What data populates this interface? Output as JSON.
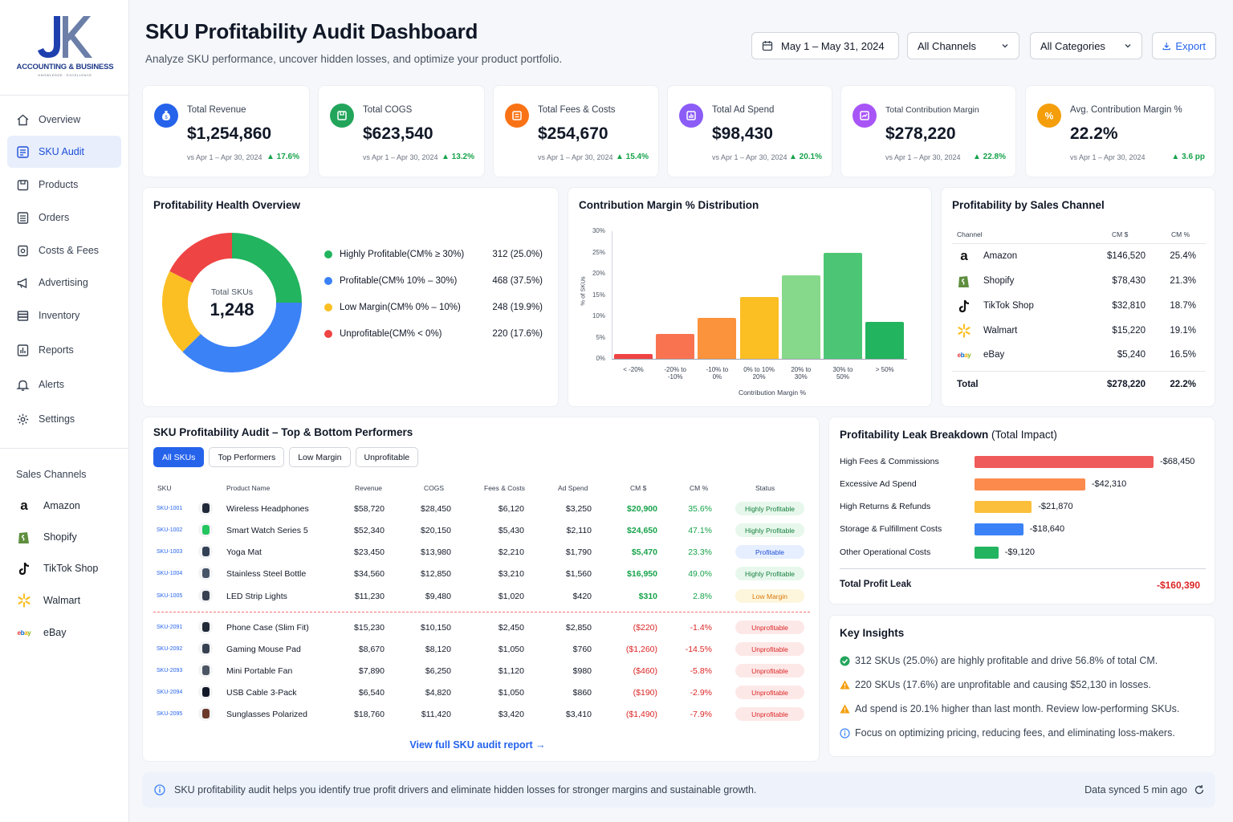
{
  "brand": {
    "name": "ACCOUNTING & BUSINESS",
    "tagline": "KNOWLEDGE · EXCELLENCE",
    "mark": "JK"
  },
  "header": {
    "title": "SKU Profitability Audit Dashboard",
    "subtitle": "Analyze SKU performance, uncover hidden losses, and optimize your product portfolio.",
    "date_range": "May 1 – May 31, 2024",
    "channel_select": "All Channels",
    "category_select": "All Categories",
    "export_label": "Export"
  },
  "nav": {
    "items": [
      {
        "label": "Overview",
        "icon": "home-icon"
      },
      {
        "label": "SKU Audit",
        "icon": "sku-audit-icon"
      },
      {
        "label": "Products",
        "icon": "box-icon"
      },
      {
        "label": "Orders",
        "icon": "orders-icon"
      },
      {
        "label": "Costs & Fees",
        "icon": "receipt-icon"
      },
      {
        "label": "Advertising",
        "icon": "megaphone-icon"
      },
      {
        "label": "Inventory",
        "icon": "inventory-icon"
      },
      {
        "label": "Reports",
        "icon": "reports-icon"
      },
      {
        "label": "Alerts",
        "icon": "bell-icon"
      },
      {
        "label": "Settings",
        "icon": "gear-icon"
      }
    ],
    "channels_heading": "Sales Channels",
    "channels": [
      {
        "label": "Amazon",
        "icon": "amazon-icon"
      },
      {
        "label": "Shopify",
        "icon": "shopify-icon"
      },
      {
        "label": "TikTok Shop",
        "icon": "tiktok-icon"
      },
      {
        "label": "Walmart",
        "icon": "walmart-icon"
      },
      {
        "label": "eBay",
        "icon": "ebay-icon"
      }
    ]
  },
  "kpis": [
    {
      "label": "Total Revenue",
      "value": "$1,254,860",
      "compare": "vs Apr 1 – Apr 30, 2024",
      "change": "▲ 17.6%",
      "color": "#2563eb",
      "icon": "money-bag-icon"
    },
    {
      "label": "Total COGS",
      "value": "$623,540",
      "compare": "vs Apr 1 – Apr 30, 2024",
      "change": "▲ 13.2%",
      "color": "#22a55b",
      "icon": "package-icon"
    },
    {
      "label": "Total Fees & Costs",
      "value": "$254,670",
      "compare": "vs Apr 1 – Apr 30, 2024",
      "change": "▲ 15.4%",
      "color": "#f97316",
      "icon": "fees-icon"
    },
    {
      "label": "Total Ad Spend",
      "value": "$98,430",
      "compare": "vs Apr 1 – Apr 30, 2024",
      "change": "▲ 20.1%",
      "color": "#8b5cf6",
      "icon": "ad-icon"
    },
    {
      "label": "Total Contribution Margin",
      "value": "$278,220",
      "compare": "vs Apr 1 – Apr 30, 2024",
      "change": "▲ 22.8%",
      "color": "#a855f7",
      "icon": "margin-icon"
    },
    {
      "label": "Avg. Contribution Margin %",
      "value": "22.2%",
      "compare": "vs Apr 1 – Apr 30, 2024",
      "change": "▲ 3.6 pp",
      "color": "#f59e0b",
      "icon": "percent-icon"
    }
  ],
  "health": {
    "title": "Profitability Health Overview",
    "center_label": "Total SKUs",
    "center_value": "1,248",
    "segments": [
      {
        "name": "Highly Profitable",
        "range": " (CM% ≥ 30%)",
        "value": "312 (25.0%)",
        "share": 25.0,
        "color": "#22b45e"
      },
      {
        "name": "Profitable",
        "range": " (CM% 10% – 30%)",
        "value": "468 (37.5%)",
        "share": 37.5,
        "color": "#3b82f6"
      },
      {
        "name": "Low Margin",
        "range": " (CM% 0% – 10%)",
        "value": "248 (19.9%)",
        "share": 19.9,
        "color": "#fbbf24"
      },
      {
        "name": "Unprofitable",
        "range": " (CM% < 0%)",
        "value": "220 (17.6%)",
        "share": 17.6,
        "color": "#ef4444"
      }
    ]
  },
  "chart_data": {
    "type": "bar",
    "title": "Contribution Margin % Distribution",
    "xlabel": "Contribution Margin %",
    "ylabel": "% of SKUs",
    "categories": [
      "< -20%",
      "-20% to -10%",
      "-10% to 0%",
      "0% to 10%",
      "20% to 30%",
      "30% to 50%",
      "> 50%"
    ],
    "category_lines": [
      [
        "< -20%"
      ],
      [
        "-20% to",
        "-10%"
      ],
      [
        "-10% to",
        "0%"
      ],
      [
        "0% to 10%",
        "20%"
      ],
      [
        "20% to",
        "30%"
      ],
      [
        "30% to",
        "50%"
      ],
      [
        "> 50%"
      ]
    ],
    "values": [
      1.2,
      5.8,
      9.6,
      14.5,
      19.7,
      25.0,
      8.6
    ],
    "colors": [
      "#ef4444",
      "#f97350",
      "#fb923c",
      "#fbbf24",
      "#86d98a",
      "#4cc674",
      "#22b45e"
    ],
    "yticks": [
      "30%",
      "25%",
      "20%",
      "15%",
      "10%",
      "5%",
      "0%"
    ],
    "ylim": [
      0,
      30
    ]
  },
  "channels_table": {
    "title": "Profitability by Sales Channel",
    "headers": [
      "Channel",
      "CM $",
      "CM %"
    ],
    "rows": [
      {
        "name": "Amazon",
        "cm": "$146,520",
        "pct": "25.4%"
      },
      {
        "name": "Shopify",
        "cm": "$78,430",
        "pct": "21.3%"
      },
      {
        "name": "TikTok Shop",
        "cm": "$32,810",
        "pct": "18.7%"
      },
      {
        "name": "Walmart",
        "cm": "$15,220",
        "pct": "19.1%"
      },
      {
        "name": "eBay",
        "cm": "$5,240",
        "pct": "16.5%"
      }
    ],
    "total": {
      "name": "Total",
      "cm": "$278,220",
      "pct": "22.2%"
    }
  },
  "sku_table": {
    "title": "SKU Profitability Audit – Top & Bottom Performers",
    "tabs": [
      "All SKUs",
      "Top Performers",
      "Low Margin",
      "Unprofitable"
    ],
    "headers": [
      "SKU",
      "Product Name",
      "Revenue",
      "COGS",
      "Fees & Costs",
      "Ad Spend",
      "CM $",
      "CM %",
      "Status"
    ],
    "rows": [
      {
        "sku": "SKU-1001",
        "name": "Wireless Headphones",
        "rev": "$58,720",
        "cogs": "$28,450",
        "fees": "$6,120",
        "ad": "$3,250",
        "cm": "$20,900",
        "pct": "35.6%",
        "status": "Highly Profitable",
        "tone": "green"
      },
      {
        "sku": "SKU-1002",
        "name": "Smart Watch Series 5",
        "rev": "$52,340",
        "cogs": "$20,150",
        "fees": "$5,430",
        "ad": "$2,110",
        "cm": "$24,650",
        "pct": "47.1%",
        "status": "Highly Profitable",
        "tone": "green"
      },
      {
        "sku": "SKU-1003",
        "name": "Yoga Mat",
        "rev": "$23,450",
        "cogs": "$13,980",
        "fees": "$2,210",
        "ad": "$1,790",
        "cm": "$5,470",
        "pct": "23.3%",
        "status": "Profitable",
        "tone": "blue"
      },
      {
        "sku": "SKU-1004",
        "name": "Stainless Steel Bottle",
        "rev": "$34,560",
        "cogs": "$12,850",
        "fees": "$3,210",
        "ad": "$1,560",
        "cm": "$16,950",
        "pct": "49.0%",
        "status": "Highly Profitable",
        "tone": "green"
      },
      {
        "sku": "SKU-1005",
        "name": "LED Strip Lights",
        "rev": "$11,230",
        "cogs": "$9,480",
        "fees": "$1,020",
        "ad": "$420",
        "cm": "$310",
        "pct": "2.8%",
        "status": "Low Margin",
        "tone": "yellow"
      },
      {
        "sku": "SKU-2091",
        "name": "Phone Case (Slim Fit)",
        "rev": "$15,230",
        "cogs": "$10,150",
        "fees": "$2,450",
        "ad": "$2,850",
        "cm": "($220)",
        "pct": "-1.4%",
        "status": "Unprofitable",
        "tone": "red"
      },
      {
        "sku": "SKU-2092",
        "name": "Gaming Mouse Pad",
        "rev": "$8,670",
        "cogs": "$8,120",
        "fees": "$1,050",
        "ad": "$760",
        "cm": "($1,260)",
        "pct": "-14.5%",
        "status": "Unprofitable",
        "tone": "red"
      },
      {
        "sku": "SKU-2093",
        "name": "Mini Portable Fan",
        "rev": "$7,890",
        "cogs": "$6,250",
        "fees": "$1,120",
        "ad": "$980",
        "cm": "($460)",
        "pct": "-5.8%",
        "status": "Unprofitable",
        "tone": "red"
      },
      {
        "sku": "SKU-2094",
        "name": "USB Cable 3-Pack",
        "rev": "$6,540",
        "cogs": "$4,820",
        "fees": "$1,050",
        "ad": "$860",
        "cm": "($190)",
        "pct": "-2.9%",
        "status": "Unprofitable",
        "tone": "red"
      },
      {
        "sku": "SKU-2095",
        "name": "Sunglasses Polarized",
        "rev": "$18,760",
        "cogs": "$11,420",
        "fees": "$3,420",
        "ad": "$3,410",
        "cm": "($1,490)",
        "pct": "-7.9%",
        "status": "Unprofitable",
        "tone": "red"
      }
    ],
    "view_full": "View full SKU audit report →"
  },
  "leak": {
    "title": "Profitability Leak Breakdown",
    "title_suffix": " (Total Impact)",
    "rows": [
      {
        "label": "High Fees & Commissions",
        "value": "-$68,450",
        "amount": 68450,
        "color": "#ef5b5b"
      },
      {
        "label": "Excessive Ad Spend",
        "value": "-$42,310",
        "amount": 42310,
        "color": "#fb8a4c"
      },
      {
        "label": "High Returns & Refunds",
        "value": "-$21,870",
        "amount": 21870,
        "color": "#fbbf3c"
      },
      {
        "label": "Storage & Fulfillment Costs",
        "value": "-$18,640",
        "amount": 18640,
        "color": "#3b82f6"
      },
      {
        "label": "Other Operational Costs",
        "value": "-$9,120",
        "amount": 9120,
        "color": "#22b45e"
      }
    ],
    "total_label": "Total Profit Leak",
    "total_value": "-$160,390"
  },
  "insights": {
    "title": "Key Insights",
    "items": [
      {
        "text": "312 SKUs (25.0%) are highly profitable and drive 56.8% of total CM.",
        "icon": "check-circle-icon",
        "color": "#22a55b"
      },
      {
        "text": "220 SKUs (17.6%) are unprofitable and causing $52,130 in losses.",
        "icon": "warning-icon",
        "color": "#f59e0b"
      },
      {
        "text": "Ad spend is 20.1% higher than last month. Review low-performing SKUs.",
        "icon": "warning-icon",
        "color": "#f59e0b"
      },
      {
        "text": "Focus on optimizing pricing, reducing fees, and eliminating loss-makers.",
        "icon": "info-icon",
        "color": "#3b82f6"
      }
    ]
  },
  "footer": {
    "message": "SKU profitability audit helps you identify true profit drivers and eliminate hidden losses for stronger margins and sustainable growth.",
    "sync": "Data synced 5 min ago"
  }
}
